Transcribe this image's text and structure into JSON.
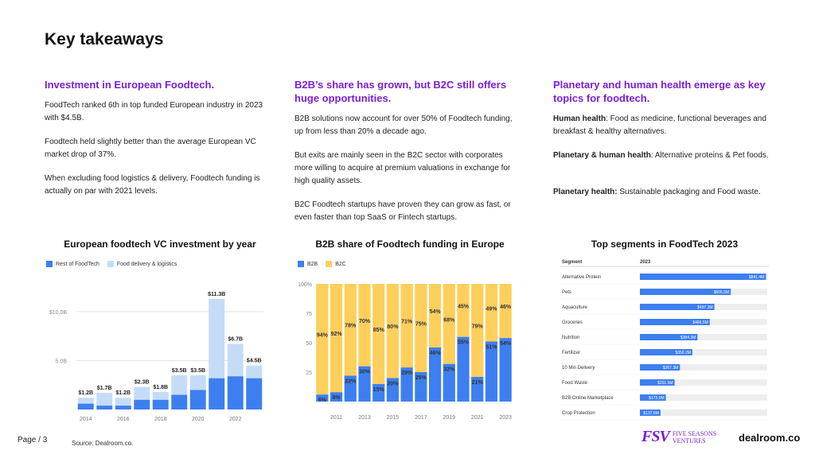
{
  "title": "Key takeaways",
  "col1": {
    "heading": "Investment in European Foodtech.",
    "p1": "FoodTech ranked 6th in top funded European industry in 2023 with $4.5B.",
    "p2": "Foodtech held slightly better than the average European VC market drop of 37%.",
    "p3": "When excluding food logistics & delivery, Foodtech funding is actually on par with 2021 levels."
  },
  "col2": {
    "heading": "B2B’s share has grown, but B2C still offers huge opportunities.",
    "p1": "B2B solutions now account for over 50% of Foodtech funding, up from less than 20% a decade ago.",
    "p2": "But exits are mainly seen in the B2C sector with corporates more willing to acquire at premium valuations in exchange for high quality assets.",
    "p3": "B2C Foodtech startups have proven they can grow as fast, or even faster than top SaaS or Fintech startups."
  },
  "col3": {
    "heading": "Planetary and human health emerge as key topics for foodtech.",
    "p1_label": "Human health",
    "p1_text": ": Food as medicine, functional beverages and breakfast & healthy alternatives.",
    "p2_label": "Planetary & human health",
    "p2_text": ": Alternative proteins &  Pet foods.",
    "p3_label": "Planetary health:",
    "p3_text": " Sustainable packaging and Food waste."
  },
  "colors": {
    "accent": "#7a1fd6",
    "blue": "#3d7ff0",
    "light_blue": "#c4dcf7",
    "yellow": "#ffcf5c",
    "bar_bg": "#eeeeee"
  },
  "chart_data": [
    {
      "type": "bar",
      "title": "European foodtech VC investment by year",
      "legend": [
        "Rest of FoodTech",
        "Food delivery & logistics"
      ],
      "years": [
        2014,
        2015,
        2016,
        2017,
        2018,
        2019,
        2020,
        2021,
        2022,
        2023
      ],
      "x_ticks": [
        "2014",
        "2016",
        "2018",
        "2020",
        "2022"
      ],
      "y_ticks": [
        {
          "v": 5,
          "label": "5.0B"
        },
        {
          "v": 10,
          "label": "$10.0B"
        }
      ],
      "ylim": [
        0,
        13
      ],
      "series": [
        {
          "name": "Rest of FoodTech",
          "values": [
            0.6,
            0.4,
            0.4,
            1.0,
            1.0,
            1.5,
            2.0,
            3.2,
            3.4,
            3.2
          ]
        },
        {
          "name": "Food delivery & logistics",
          "values": [
            0.6,
            1.3,
            0.8,
            1.3,
            0.8,
            2.0,
            1.5,
            8.1,
            3.3,
            1.3
          ]
        }
      ],
      "totals": [
        "$1.2B",
        "$1.7B",
        "$1.2B",
        "$2.3B",
        "$1.8B",
        "$3.5B",
        "$3.5B",
        "$11.3B",
        "$6.7B",
        "$4.5B"
      ]
    },
    {
      "type": "bar",
      "title": "B2B share of Foodtech funding in Europe",
      "legend": [
        "B2B",
        "B2C"
      ],
      "years": [
        2010,
        2011,
        2012,
        2013,
        2014,
        2015,
        2016,
        2017,
        2018,
        2019,
        2020,
        2021,
        2022,
        2023
      ],
      "x_ticks": [
        "2011",
        "2013",
        "2015",
        "2017",
        "2019",
        "2021",
        "2023"
      ],
      "y_ticks": [
        "25",
        "50",
        "75",
        "100%"
      ],
      "series": [
        {
          "name": "B2B",
          "values": [
            6,
            8,
            22,
            30,
            15,
            20,
            29,
            25,
            46,
            32,
            55,
            21,
            51,
            54
          ]
        },
        {
          "name": "B2C",
          "values": [
            94,
            92,
            78,
            70,
            85,
            80,
            71,
            75,
            54,
            68,
            45,
            79,
            49,
            46
          ]
        }
      ]
    },
    {
      "type": "bar",
      "title": "Top segments in FoodTech 2023",
      "header_segment": "Segment",
      "header_year": "2023",
      "segments": [
        "Alternative Protein",
        "Pets",
        "Aquaculture",
        "Groceries",
        "Nutrition",
        "Fertilizer",
        "10 Min Delivery",
        "Food Waste",
        "B2B Online Marketplace",
        "Crop Protection"
      ],
      "values": [
        841.4,
        606.5,
        497.3,
        466.5,
        384.3,
        350.2,
        267.3,
        231.5,
        173.0,
        137.6
      ],
      "labels": [
        "$841.4M",
        "$606.5M",
        "$497.3M",
        "$466.5M",
        "$384.3M",
        "$350.2M",
        "$267.3M",
        "$231.5M",
        "$173.0M",
        "$137.6M"
      ],
      "max": 850
    }
  ],
  "footer": {
    "page": "Page / 3",
    "source": "Source: Dealroom.co.",
    "logo_fsv": "FSV",
    "logo_fsv_text1": "FIVE SEASONS",
    "logo_fsv_text2": "VENTURES",
    "logo_dealroom": "dealroom.co"
  }
}
